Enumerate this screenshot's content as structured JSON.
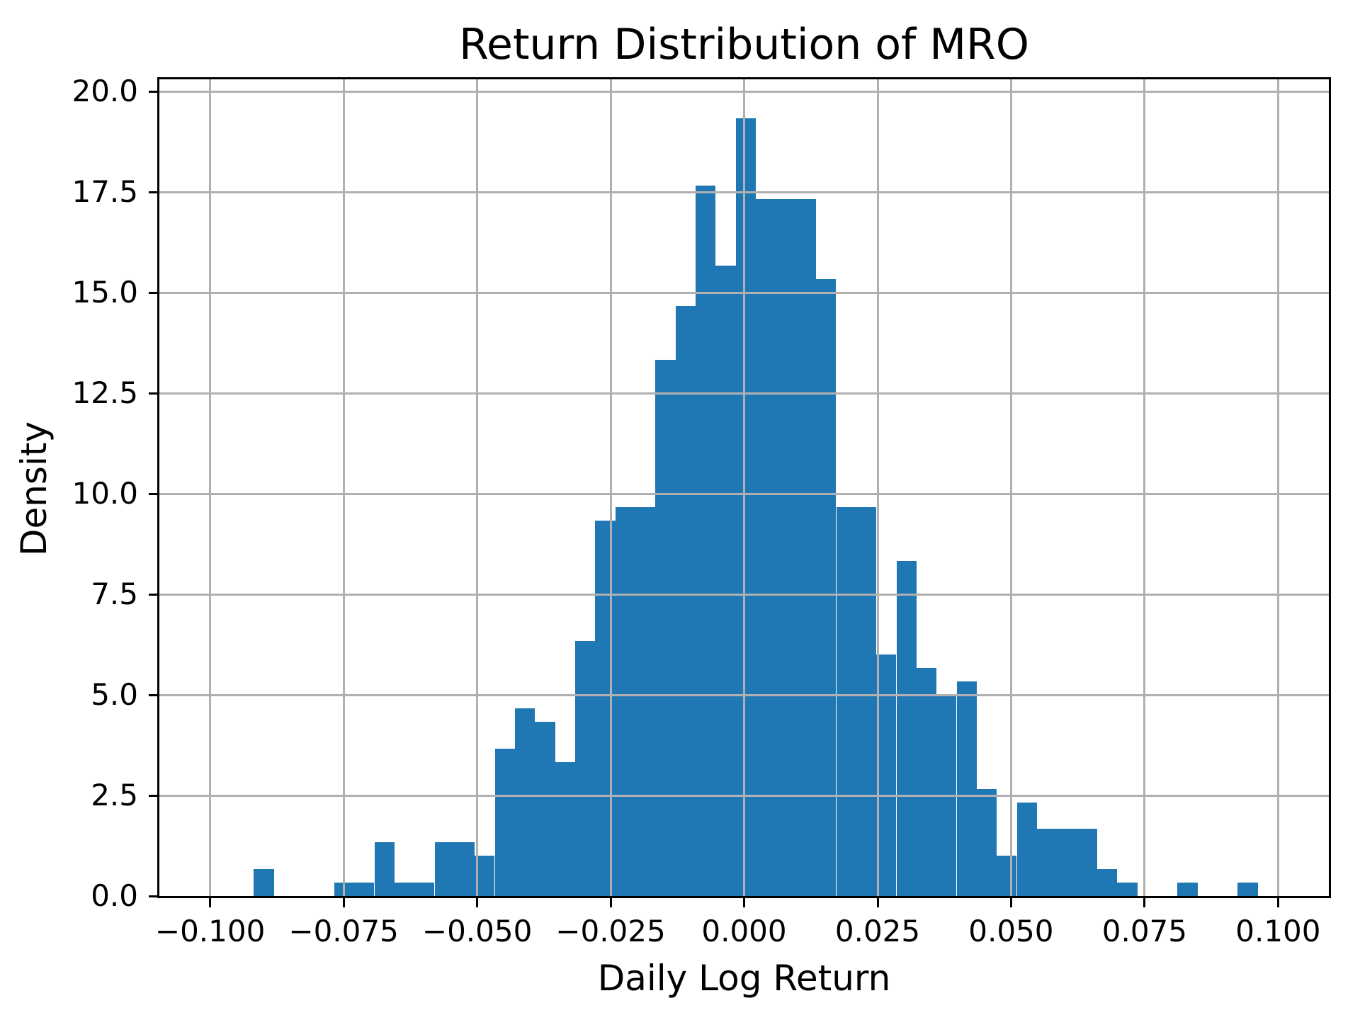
{
  "chart_data": {
    "type": "bar",
    "subtype": "histogram",
    "title": "Return Distribution of MRO",
    "xlabel": "Daily Log Return",
    "ylabel": "Density",
    "bar_color": "#1f77b4",
    "grid_color": "#b0b0b0",
    "grid": true,
    "legend": "none",
    "xlim": [
      -0.1095,
      0.1095
    ],
    "ylim": [
      0,
      20.3
    ],
    "bin_start": -0.0918,
    "bin_width": 0.00376,
    "densities": [
      0.667,
      0,
      0,
      0,
      0.333,
      0.333,
      1.333,
      0.333,
      0.333,
      1.333,
      1.333,
      1.0,
      3.667,
      4.667,
      4.333,
      3.333,
      6.333,
      9.333,
      9.667,
      9.667,
      13.333,
      14.667,
      17.667,
      15.667,
      19.333,
      17.333,
      17.333,
      17.333,
      15.333,
      9.667,
      9.667,
      6.0,
      8.333,
      5.667,
      5.0,
      5.333,
      2.667,
      1.0,
      2.333,
      1.667,
      1.667,
      1.667,
      0.667,
      0.333,
      0,
      0,
      0.333,
      0,
      0,
      0.333
    ],
    "xticks": [
      -0.1,
      -0.075,
      -0.05,
      -0.025,
      0.0,
      0.025,
      0.05,
      0.075,
      0.1
    ],
    "xtick_labels": [
      "−0.100",
      "−0.075",
      "−0.050",
      "−0.025",
      "0.000",
      "0.025",
      "0.050",
      "0.075",
      "0.100"
    ],
    "yticks": [
      0.0,
      2.5,
      5.0,
      7.5,
      10.0,
      12.5,
      15.0,
      17.5,
      20.0
    ],
    "ytick_labels": [
      "0.0",
      "2.5",
      "5.0",
      "7.5",
      "10.0",
      "12.5",
      "15.0",
      "17.5",
      "20.0"
    ]
  }
}
